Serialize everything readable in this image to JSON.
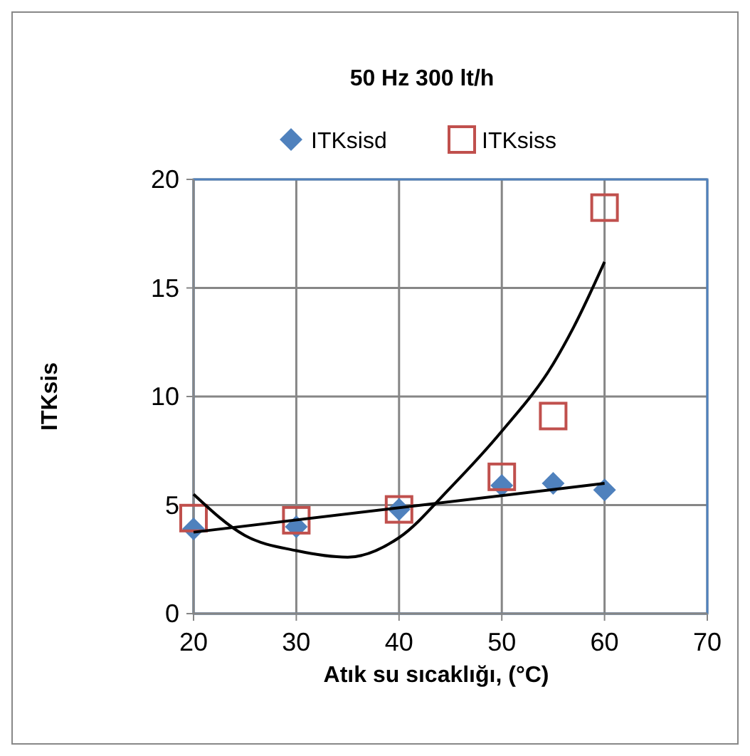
{
  "chart_data": {
    "type": "scatter",
    "title": "50 Hz 300 lt/h",
    "xlabel": "Atık su sıcaklığı, (°C)",
    "ylabel": "ITKsis",
    "xlim": [
      20,
      70
    ],
    "xticks": [
      20,
      30,
      40,
      50,
      60,
      70
    ],
    "ylim": [
      0,
      20
    ],
    "yticks": [
      0,
      5,
      10,
      15,
      20
    ],
    "grid": true,
    "legend": "top",
    "series": [
      {
        "name": "ITKsisd",
        "color": "#4f81bd",
        "marker": "diamond",
        "x": [
          20,
          30,
          40,
          50,
          55,
          60
        ],
        "values": [
          3.9,
          4.0,
          4.8,
          5.9,
          6.0,
          5.7
        ]
      },
      {
        "name": "ITKsiss",
        "color": "#c0504d",
        "marker": "square",
        "x": [
          20,
          30,
          40,
          50,
          55,
          60
        ],
        "values": [
          4.4,
          4.3,
          4.8,
          6.3,
          9.1,
          18.7
        ]
      },
      {
        "type": "line",
        "color": "#000000",
        "marker": "none",
        "x": [
          20,
          60
        ],
        "values": [
          3.75,
          6.0
        ]
      },
      {
        "type": "line",
        "color": "#000000",
        "marker": "none",
        "x": [
          20,
          25,
          30,
          35,
          40,
          45,
          50,
          55,
          57,
          60
        ],
        "values": [
          5.5,
          3.6,
          2.9,
          2.6,
          3.5,
          5.8,
          8.4,
          11.5,
          13.2,
          16.2
        ]
      }
    ]
  }
}
